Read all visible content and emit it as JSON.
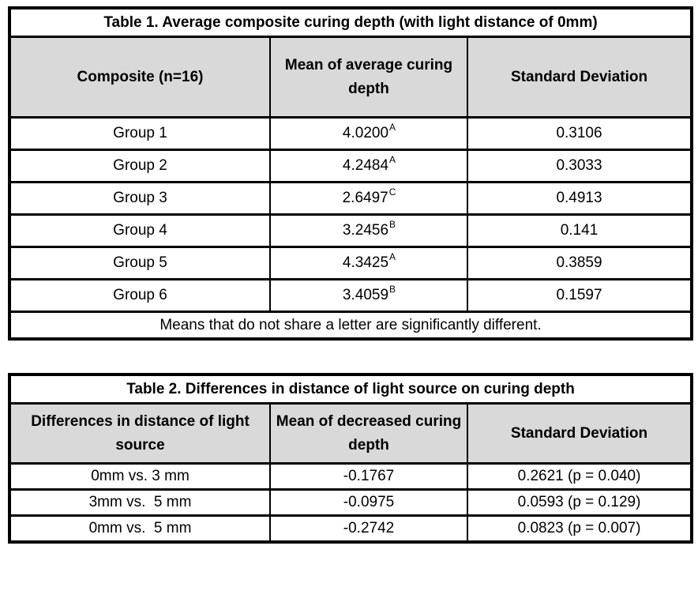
{
  "colors": {
    "header_fill": "#d9d9d9",
    "border": "#000000",
    "background": "#ffffff",
    "text": "#000000"
  },
  "table1": {
    "title": "Table 1. Average composite curing depth (with light distance of 0mm)",
    "columns": [
      "Composite (n=16)",
      "Mean of average curing depth",
      "Standard Deviation"
    ],
    "rows": [
      {
        "group": "Group 1",
        "mean": "4.0200",
        "sup": "A",
        "sd": "0.3106"
      },
      {
        "group": "Group 2",
        "mean": "4.2484",
        "sup": "A",
        "sd": "0.3033"
      },
      {
        "group": "Group 3",
        "mean": "2.6497",
        "sup": "C",
        "sd": "0.4913"
      },
      {
        "group": "Group 4",
        "mean": "3.2456",
        "sup": "B",
        "sd": "0.141"
      },
      {
        "group": "Group 5",
        "mean": "4.3425",
        "sup": "A",
        "sd": "0.3859"
      },
      {
        "group": "Group 6",
        "mean": "3.4059",
        "sup": "B",
        "sd": "0.1597"
      }
    ],
    "footnote": "Means that do not share a letter are significantly different."
  },
  "table2": {
    "title": "Table 2. Differences in distance of light source on curing depth",
    "columns": [
      "Differences in distance of light source",
      "Mean of decreased curing depth",
      "Standard Deviation"
    ],
    "rows": [
      {
        "comparison": "0mm vs. 3 mm",
        "mean": "-0.1767",
        "sd": "0.2621 (p = 0.040)"
      },
      {
        "comparison": "3mm vs.  5 mm",
        "mean": "-0.0975",
        "sd": "0.0593 (p = 0.129)"
      },
      {
        "comparison": "0mm vs.  5 mm",
        "mean": "-0.2742",
        "sd": "0.0823 (p = 0.007)"
      }
    ]
  }
}
